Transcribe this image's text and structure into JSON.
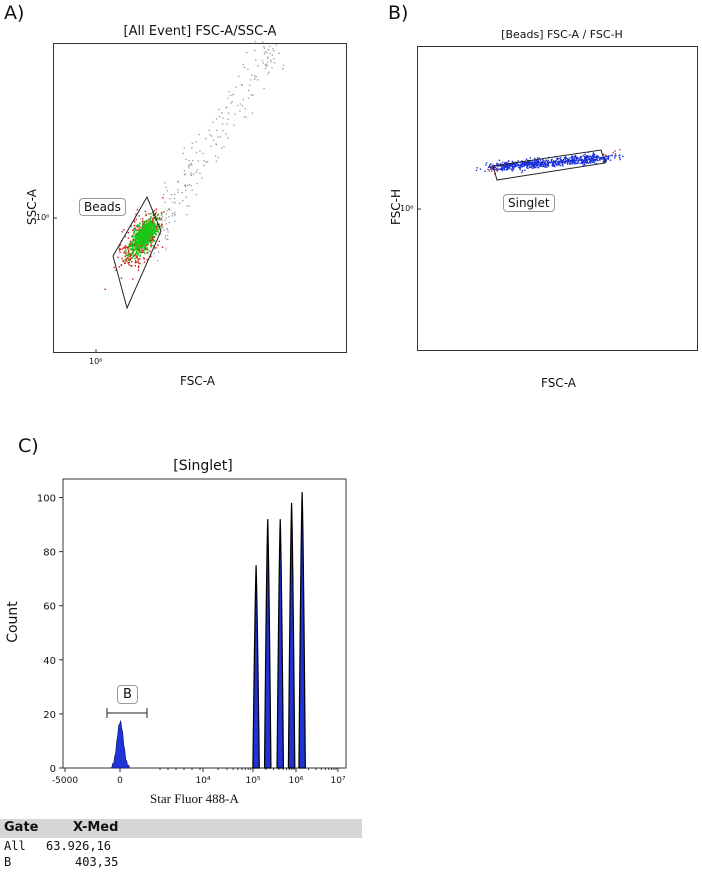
{
  "panels": {
    "a": {
      "letter": "A)",
      "title": "[All Event] FSC-A/SSC-A",
      "xlabel": "FSC-A",
      "ylabel": "SSC-A",
      "x_tick": "10⁶",
      "y_tick": "10⁶",
      "gate_label": "Beads"
    },
    "b": {
      "letter": "B)",
      "title": "[Beads] FSC-A / FSC-H",
      "xlabel": "FSC-A",
      "ylabel": "FSC-H",
      "y_tick": "10⁶",
      "gate_label": "Singlet"
    },
    "c": {
      "letter": "C)",
      "title": "[Singlet]",
      "xlabel": "Star Fluor 488-A",
      "ylabel": "Count",
      "gate_label": "B"
    }
  },
  "colors": {
    "gated_events": "#18c818",
    "edge_events": "#e01010",
    "ungated_events": "#9a9a9a",
    "singlet_events": "#1a2fd8",
    "histogram_fill": "#1f33d6",
    "histogram_peaks": "#000000"
  },
  "chart_data": [
    {
      "type": "scatter",
      "title": "[All Event] FSC-A/SSC-A",
      "xlabel": "FSC-A",
      "ylabel": "SSC-A",
      "x_scale": "log",
      "y_scale": "log",
      "x_ticks": [
        "10⁶"
      ],
      "y_ticks": [
        "10⁶"
      ],
      "gates": [
        {
          "name": "Beads",
          "shape": "polygon"
        }
      ],
      "grid": false
    },
    {
      "type": "scatter",
      "title": "[Beads] FSC-A / FSC-H",
      "xlabel": "FSC-A",
      "ylabel": "FSC-H",
      "x_scale": "log",
      "y_scale": "log",
      "y_ticks": [
        "10⁶"
      ],
      "gates": [
        {
          "name": "Singlet",
          "shape": "polygon"
        }
      ],
      "grid": false
    },
    {
      "type": "histogram",
      "title": "[Singlet]",
      "xlabel": "Star Fluor 488-A",
      "ylabel": "Count",
      "x_scale": "biexponential",
      "x_ticks": [
        "-5000",
        "0",
        "10⁴",
        "10⁵",
        "10⁶",
        "10⁷"
      ],
      "y_ticks": [
        0,
        20,
        40,
        60,
        80,
        100
      ],
      "ylim": [
        0,
        105
      ],
      "peaks": [
        {
          "position": 25,
          "count": 17,
          "filled": true
        },
        {
          "position": 118000,
          "count": 75,
          "filled": false
        },
        {
          "position": 220000,
          "count": 92,
          "filled": false
        },
        {
          "position": 430000,
          "count": 92,
          "filled": false
        },
        {
          "position": 790000,
          "count": 98,
          "filled": false
        },
        {
          "position": 1400000,
          "count": 102,
          "filled": false
        }
      ],
      "gates": [
        {
          "name": "B",
          "shape": "range"
        }
      ],
      "grid": false
    }
  ],
  "stats": {
    "headers": {
      "gate": "Gate",
      "xmed": "X-Med"
    },
    "rows": [
      {
        "gate": "All",
        "xmed": "63.926,16"
      },
      {
        "gate": "B",
        "xmed": "403,35"
      }
    ]
  }
}
